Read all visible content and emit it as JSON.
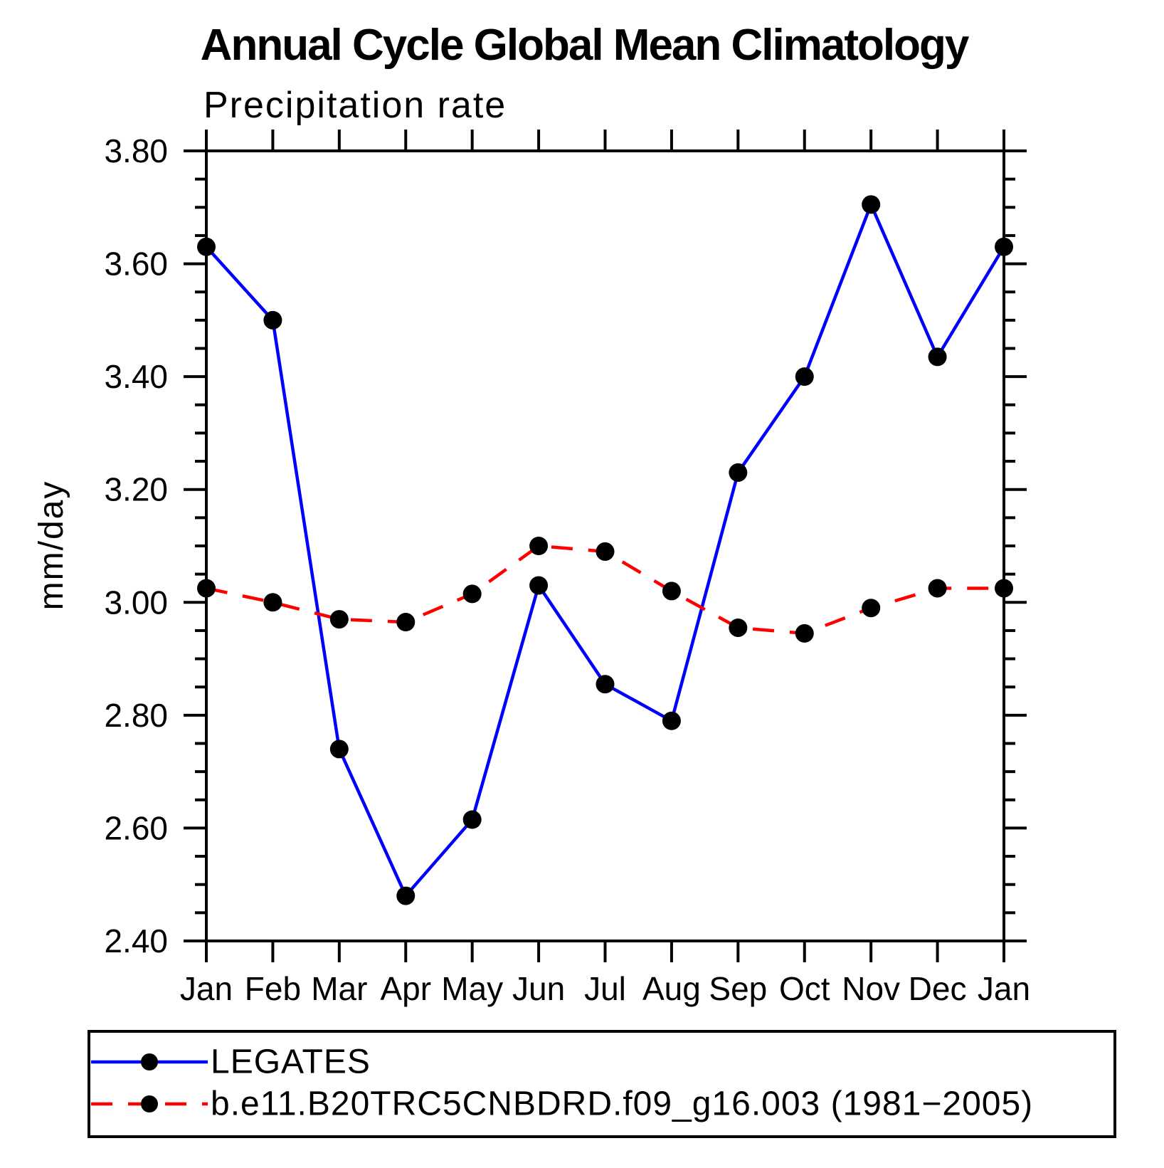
{
  "title": "Annual Cycle Global Mean Climatology",
  "subtitle": "Precipitation rate",
  "ylabel": "mm/day",
  "chart_data": {
    "type": "line",
    "categories": [
      "Jan",
      "Feb",
      "Mar",
      "Apr",
      "May",
      "Jun",
      "Jul",
      "Aug",
      "Sep",
      "Oct",
      "Nov",
      "Dec",
      "Jan"
    ],
    "series": [
      {
        "name": "LEGATES",
        "color": "#0000ff",
        "style": "solid",
        "values": [
          3.63,
          3.5,
          2.74,
          2.48,
          2.615,
          3.03,
          2.855,
          2.79,
          3.23,
          3.4,
          3.705,
          3.435,
          3.63
        ]
      },
      {
        "name": "b.e11.B20TRC5CNBDRD.f09_g16.003 (1981−2005)",
        "color": "#ff0000",
        "style": "dashed",
        "values": [
          3.025,
          3.0,
          2.97,
          2.965,
          3.015,
          3.1,
          3.09,
          3.02,
          2.955,
          2.945,
          2.99,
          3.025,
          3.025
        ]
      }
    ],
    "ylim": [
      2.4,
      3.8
    ],
    "ytick_step": 0.2,
    "yminor_step": 0.05,
    "ytick_labels": [
      "2.40",
      "2.60",
      "2.80",
      "3.00",
      "3.20",
      "3.40",
      "3.60",
      "3.80"
    ],
    "marker_color": "#000000",
    "axis_color": "#000000",
    "grid": false,
    "legend_position": "bottom"
  }
}
